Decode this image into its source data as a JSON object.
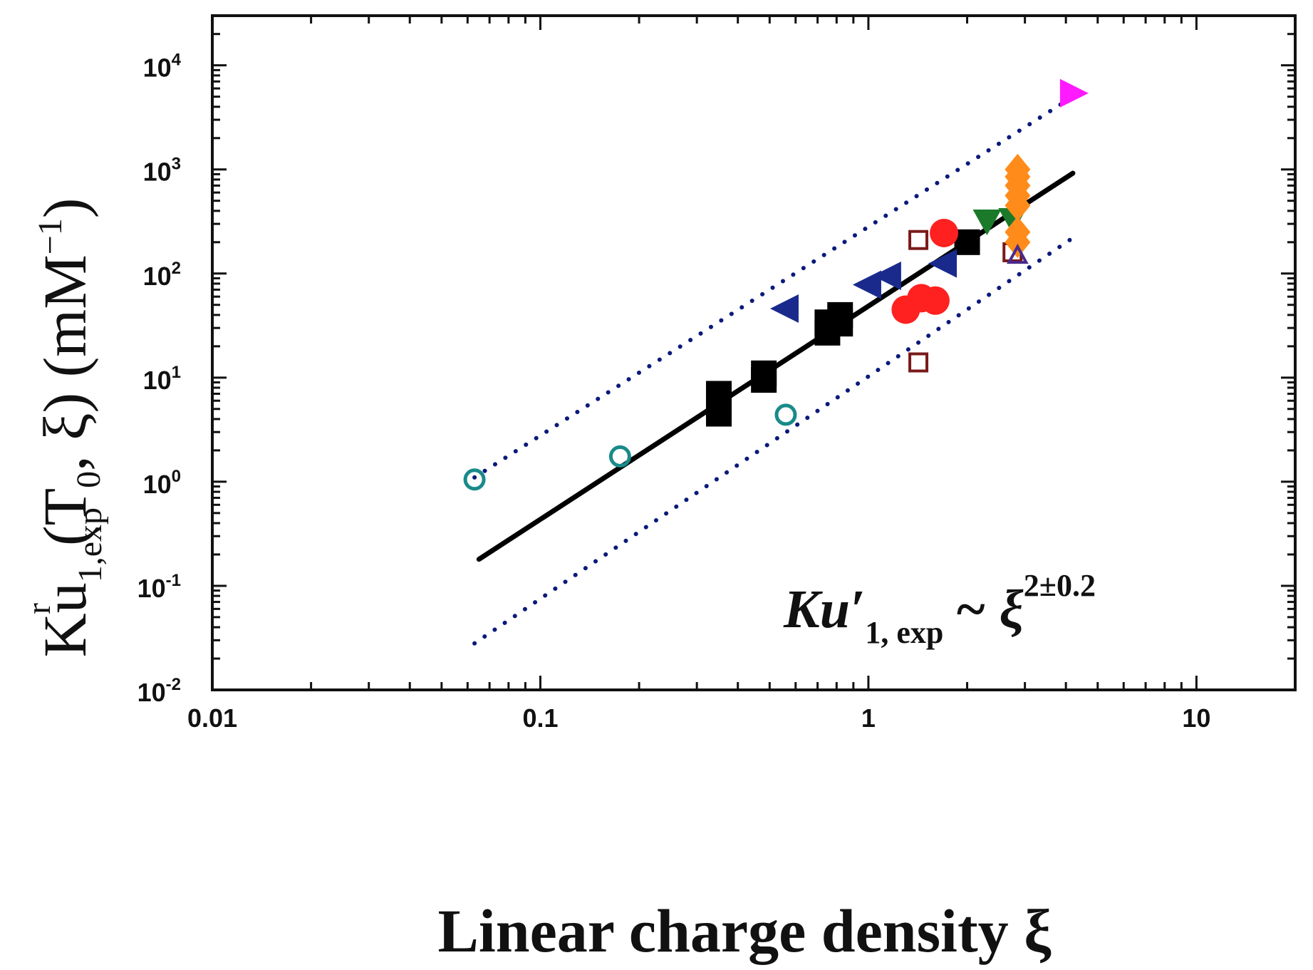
{
  "chart_data": {
    "type": "scatter",
    "xscale": "log",
    "yscale": "log",
    "xlim": [
      0.01,
      20
    ],
    "ylim": [
      0.01,
      30000
    ],
    "xlabel": "Linear charge density ξ",
    "ylabel": {
      "base": "Ku",
      "sup": "r",
      "sub": "1,exp",
      "rest": "(T",
      "rest_sub": "0",
      "rest_tail": ", ξ) (mM",
      "rest_sup": "−1",
      "close": ")"
    },
    "x_ticks": [
      {
        "value": 0.01,
        "label": "0.01"
      },
      {
        "value": 0.1,
        "label": "0.1"
      },
      {
        "value": 1,
        "label": "1"
      },
      {
        "value": 10,
        "label": "10"
      }
    ],
    "y_ticks": [
      {
        "value": 0.01,
        "base": "10",
        "exp": "-2"
      },
      {
        "value": 0.1,
        "base": "10",
        "exp": "-1"
      },
      {
        "value": 1,
        "base": "10",
        "exp": "0"
      },
      {
        "value": 10,
        "base": "10",
        "exp": "1"
      },
      {
        "value": 100,
        "base": "10",
        "exp": "2"
      },
      {
        "value": 1000,
        "base": "10",
        "exp": "3"
      },
      {
        "value": 10000,
        "base": "10",
        "exp": "4"
      }
    ],
    "annotation": {
      "main": "Ku′",
      "sub": "1, exp",
      "tilde": "~ ξ",
      "sup": "2±0.2"
    },
    "lines": [
      {
        "name": "power-law fit",
        "style": "solid",
        "color": "#000000",
        "points": [
          [
            0.065,
            0.18
          ],
          [
            4.2,
            920
          ]
        ]
      },
      {
        "name": "upper bound",
        "style": "dotted",
        "color": "#0a1a7a",
        "points": [
          [
            0.063,
            1.1
          ],
          [
            4.2,
            5000
          ]
        ]
      },
      {
        "name": "lower bound",
        "style": "dotted",
        "color": "#0a1a7a",
        "points": [
          [
            0.063,
            0.028
          ],
          [
            4.2,
            220
          ]
        ]
      }
    ],
    "series": [
      {
        "name": "filled squares",
        "marker": "square-filled",
        "color": "#000000",
        "points": [
          [
            0.35,
            7
          ],
          [
            0.35,
            5.5
          ],
          [
            0.35,
            4.5
          ],
          [
            0.48,
            11
          ],
          [
            0.48,
            9.5
          ],
          [
            0.75,
            34
          ],
          [
            0.75,
            27
          ],
          [
            0.82,
            40
          ],
          [
            0.82,
            33
          ],
          [
            2.0,
            200
          ]
        ]
      },
      {
        "name": "open circles",
        "marker": "circle-open",
        "color": "#1a8a8a",
        "points": [
          [
            0.063,
            1.05
          ],
          [
            0.175,
            1.75
          ],
          [
            0.56,
            4.4
          ]
        ]
      },
      {
        "name": "left triangles",
        "marker": "triangle-left-filled",
        "color": "#1a2a8c",
        "points": [
          [
            0.56,
            46
          ],
          [
            1.0,
            78
          ],
          [
            1.15,
            95
          ],
          [
            1.7,
            125
          ]
        ]
      },
      {
        "name": "filled circles",
        "marker": "circle-filled",
        "color": "#ff2020",
        "points": [
          [
            1.3,
            45
          ],
          [
            1.45,
            58
          ],
          [
            1.6,
            55
          ],
          [
            1.7,
            245
          ]
        ]
      },
      {
        "name": "open squares",
        "marker": "square-open",
        "color": "#7a1a1a",
        "points": [
          [
            1.42,
            210
          ],
          [
            1.42,
            14
          ],
          [
            2.75,
            160
          ]
        ]
      },
      {
        "name": "down triangles",
        "marker": "triangle-down-filled",
        "color": "#1a7a2a",
        "points": [
          [
            2.3,
            320
          ],
          [
            2.75,
            330
          ]
        ]
      },
      {
        "name": "diamonds",
        "marker": "diamond-filled",
        "color": "#ff8c1a",
        "points": [
          [
            2.85,
            1000
          ],
          [
            2.85,
            850
          ],
          [
            2.85,
            700
          ],
          [
            2.85,
            560
          ],
          [
            2.85,
            450
          ],
          [
            2.85,
            250
          ],
          [
            2.85,
            200
          ]
        ]
      },
      {
        "name": "up triangles",
        "marker": "triangle-up-open",
        "color": "#4a2a8c",
        "points": [
          [
            2.85,
            150
          ]
        ]
      },
      {
        "name": "right triangle",
        "marker": "triangle-right-filled",
        "color": "#ff1aff",
        "points": [
          [
            4.2,
            5400
          ]
        ]
      }
    ]
  }
}
